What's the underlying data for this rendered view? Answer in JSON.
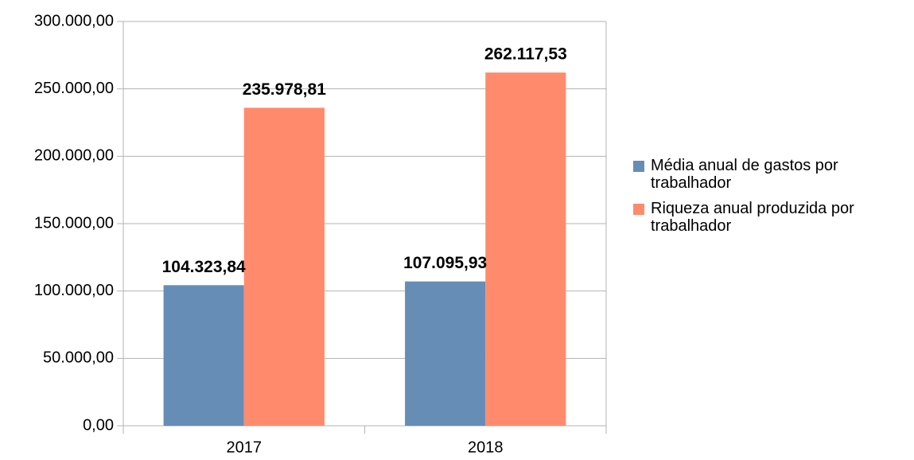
{
  "chart_data": {
    "type": "bar",
    "categories": [
      "2017",
      "2018"
    ],
    "series": [
      {
        "name": "Média anual de gastos por trabalhador",
        "color": "#658db6",
        "values": [
          104323.84,
          107095.93
        ],
        "value_labels": [
          "104.323,84",
          "107.095,93"
        ]
      },
      {
        "name": "Riqueza anual produzida por trabalhador",
        "color": "#ff8b6c",
        "values": [
          235978.81,
          262117.53
        ],
        "value_labels": [
          "235.978,81",
          "262.117,53"
        ]
      }
    ],
    "ylim": [
      0,
      300000
    ],
    "yticks": [
      {
        "value": 0,
        "label": "0,00"
      },
      {
        "value": 50000,
        "label": "50.000,00"
      },
      {
        "value": 100000,
        "label": "100.000,00"
      },
      {
        "value": 150000,
        "label": "150.000,00"
      },
      {
        "value": 200000,
        "label": "200.000,00"
      },
      {
        "value": 250000,
        "label": "250.000,00"
      },
      {
        "value": 300000,
        "label": "300.000,00"
      }
    ],
    "grid": true,
    "legend": "right"
  }
}
